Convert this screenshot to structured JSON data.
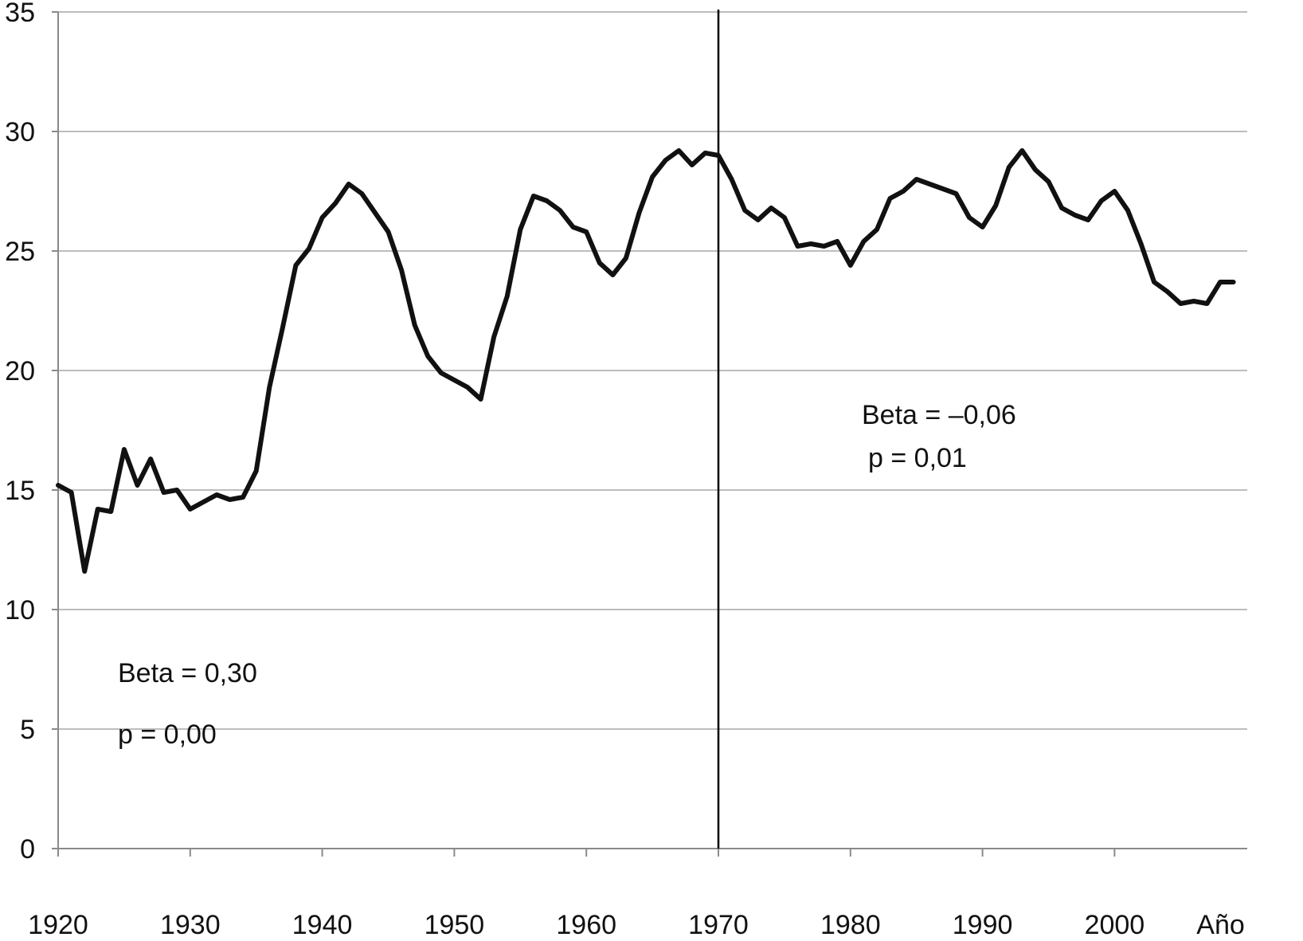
{
  "chart_data": {
    "type": "line",
    "title": "",
    "xlabel": "Año",
    "ylabel": "",
    "xlim": [
      1920,
      2009
    ],
    "ylim": [
      0,
      35
    ],
    "x_ticks": [
      "1920",
      "1930",
      "1940",
      "1950",
      "1960",
      "1970",
      "1980",
      "1990",
      "2000"
    ],
    "y_ticks": [
      "0",
      "5",
      "10",
      "15",
      "20",
      "25",
      "30",
      "35"
    ],
    "grid": "horizontal",
    "legend": "none",
    "vertical_line_x": 1970,
    "series": [
      {
        "x": [
          1920,
          1921,
          1922,
          1923,
          1924,
          1925,
          1926,
          1927,
          1928,
          1929,
          1930,
          1931,
          1932,
          1933,
          1934,
          1935,
          1936,
          1937,
          1938,
          1939,
          1940,
          1941,
          1942,
          1943,
          1944,
          1945,
          1946,
          1947,
          1948,
          1949,
          1950,
          1951,
          1952,
          1953,
          1954,
          1955,
          1956,
          1957,
          1958,
          1959,
          1960,
          1961,
          1962,
          1963,
          1964,
          1965,
          1966,
          1967,
          1968,
          1969,
          1970,
          1971,
          1972,
          1973,
          1974,
          1975,
          1976,
          1977,
          1978,
          1979,
          1980,
          1981,
          1982,
          1983,
          1984,
          1985,
          1986,
          1987,
          1988,
          1989,
          1990,
          1991,
          1992,
          1993,
          1994,
          1995,
          1996,
          1997,
          1998,
          1999,
          2000,
          2001,
          2002,
          2003,
          2004,
          2005,
          2006,
          2007,
          2008,
          2009
        ],
        "values": [
          15.2,
          14.9,
          11.6,
          14.2,
          14.1,
          16.7,
          15.2,
          16.3,
          14.9,
          15.0,
          14.2,
          14.5,
          14.8,
          14.6,
          14.7,
          15.8,
          19.3,
          21.8,
          24.4,
          25.1,
          26.4,
          27.0,
          27.8,
          27.4,
          26.6,
          25.8,
          24.2,
          21.9,
          20.6,
          19.9,
          19.6,
          19.3,
          18.8,
          21.4,
          23.1,
          25.9,
          27.3,
          27.1,
          26.7,
          26.0,
          25.8,
          24.5,
          24.0,
          24.7,
          26.6,
          28.1,
          28.8,
          29.2,
          28.6,
          29.1,
          29.0,
          28.0,
          26.7,
          26.3,
          26.8,
          26.4,
          25.2,
          25.3,
          25.2,
          25.4,
          24.4,
          25.4,
          25.9,
          27.2,
          27.5,
          28.0,
          27.8,
          27.6,
          27.4,
          26.4,
          26.0,
          26.9,
          28.5,
          29.2,
          28.4,
          27.9,
          26.8,
          26.5,
          26.3,
          27.1,
          27.5,
          26.7,
          25.3,
          23.7,
          23.3,
          22.8,
          22.9,
          22.8,
          23.7,
          23.7
        ]
      }
    ],
    "annotations": [
      {
        "line1": "Beta = 0,30",
        "line2": "p = 0,00"
      },
      {
        "line1": "Beta = –0,06",
        "line2": "p = 0,01"
      }
    ]
  }
}
